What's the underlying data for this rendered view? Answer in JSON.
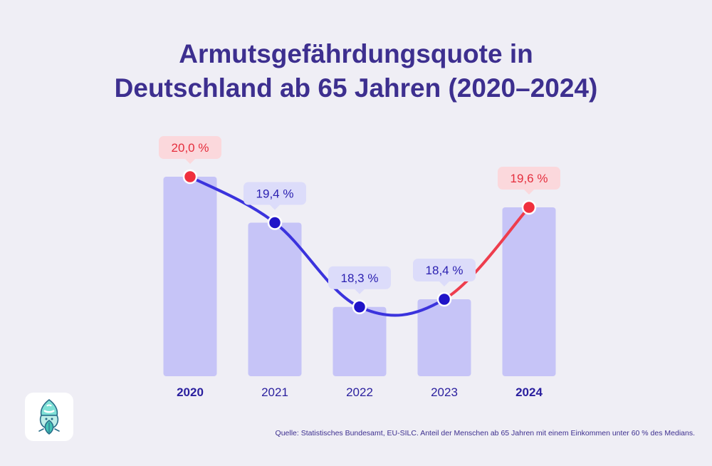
{
  "title": {
    "line1": "Armutsgefährdungsquote in",
    "line2": "Deutschland ab 65 Jahren (2020–2024)"
  },
  "source": "Quelle: Statistisches Bundesamt, EU-SILC. Anteil der Menschen ab 65 Jahren mit einem Einkommen unter 60 % des Medians.",
  "logo": {
    "icon": "leaf-character-logo"
  },
  "colors": {
    "bar": "#c6c4f7",
    "line_blue": "#3b33dd",
    "line_red": "#ee3d4d",
    "point_blue": "#2014c8",
    "point_red": "#f0303d",
    "label_bg_blue": "#dcdcfa",
    "label_bg_red": "#fbd8dc",
    "label_text_blue": "#2a1fb0",
    "label_text_red": "#e52e3d",
    "axis_text": "#2a1f9e"
  },
  "chart_data": {
    "type": "bar",
    "categories": [
      "2020",
      "2021",
      "2022",
      "2023",
      "2024"
    ],
    "values": [
      20.0,
      19.4,
      18.3,
      18.4,
      19.6
    ],
    "data_labels": [
      "20,0 %",
      "19,4 %",
      "18,3 %",
      "18,4 %",
      "19,6 %"
    ],
    "highlighted": [
      "2020",
      "2024"
    ],
    "overlay": "line",
    "title": "Armutsgefährdungsquote in Deutschland ab 65 Jahren (2020–2024)",
    "xlabel": "",
    "ylabel": "",
    "grid": false,
    "legend": "none"
  }
}
